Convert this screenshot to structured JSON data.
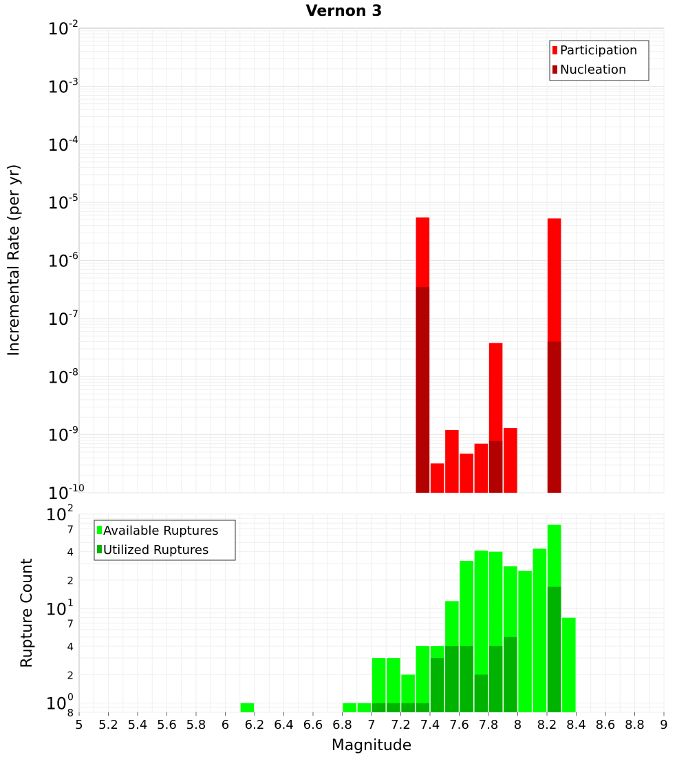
{
  "chart_data": [
    {
      "type": "bar",
      "title": "Vernon 3",
      "ylabel": "Incremental Rate (per yr)",
      "xlabel": "",
      "yscale": "log",
      "ylim": [
        1e-10,
        0.01
      ],
      "xlim": [
        5,
        9
      ],
      "grid": true,
      "legend_position": "top-right",
      "x_ticks": [],
      "y_ticks": [
        {
          "base": "10",
          "exp": "-10",
          "value": 1e-10
        },
        {
          "base": "10",
          "exp": "-9",
          "value": 1e-09
        },
        {
          "base": "10",
          "exp": "-8",
          "value": 1e-08
        },
        {
          "base": "10",
          "exp": "-7",
          "value": 1e-07
        },
        {
          "base": "10",
          "exp": "-6",
          "value": 1e-06
        },
        {
          "base": "10",
          "exp": "-5",
          "value": 1e-05
        },
        {
          "base": "10",
          "exp": "-4",
          "value": 0.0001
        },
        {
          "base": "10",
          "exp": "-3",
          "value": 0.001
        },
        {
          "base": "10",
          "exp": "-2",
          "value": 0.01
        }
      ],
      "series": [
        {
          "name": "Participation",
          "color": "#ff0000",
          "points": [
            {
              "x": 7.35,
              "y": 5.5e-06
            },
            {
              "x": 7.45,
              "y": 3.2e-10
            },
            {
              "x": 7.55,
              "y": 1.2e-09
            },
            {
              "x": 7.65,
              "y": 4.7e-10
            },
            {
              "x": 7.75,
              "y": 7e-10
            },
            {
              "x": 7.85,
              "y": 3.8e-08
            },
            {
              "x": 7.95,
              "y": 1.3e-09
            },
            {
              "x": 8.25,
              "y": 5.3e-06
            }
          ]
        },
        {
          "name": "Nucleation",
          "color": "#b30000",
          "points": [
            {
              "x": 7.35,
              "y": 3.5e-07
            },
            {
              "x": 7.85,
              "y": 7.8e-10
            },
            {
              "x": 8.25,
              "y": 4e-08
            }
          ]
        }
      ]
    },
    {
      "type": "bar",
      "title": "",
      "ylabel": "Rupture Count",
      "xlabel": "Magnitude",
      "yscale": "log",
      "ylim": [
        0.8,
        100
      ],
      "xlim": [
        5,
        9
      ],
      "grid": true,
      "legend_position": "top-left",
      "x_ticks": [
        "5",
        "5.2",
        "5.4",
        "5.6",
        "5.8",
        "6",
        "6.2",
        "6.4",
        "6.6",
        "6.8",
        "7",
        "7.2",
        "7.4",
        "7.6",
        "7.8",
        "8",
        "8.2",
        "8.4",
        "8.6",
        "8.8",
        "9"
      ],
      "y_ticks": [
        {
          "base": "10",
          "exp": "2",
          "value": 100
        },
        {
          "base": "10",
          "exp": "1",
          "value": 10
        },
        {
          "base": "10",
          "exp": "0",
          "value": 1
        }
      ],
      "y_minor_ticks": [
        {
          "label": "7",
          "value": 70
        },
        {
          "label": "4",
          "value": 40
        },
        {
          "label": "2",
          "value": 20
        },
        {
          "label": "7",
          "value": 7
        },
        {
          "label": "4",
          "value": 4
        },
        {
          "label": "2",
          "value": 2
        },
        {
          "label": "8",
          "value": 0.8
        }
      ],
      "series": [
        {
          "name": "Available Ruptures",
          "color": "#00ff00",
          "points": [
            {
              "x": 6.15,
              "y": 1
            },
            {
              "x": 6.85,
              "y": 1
            },
            {
              "x": 6.95,
              "y": 1
            },
            {
              "x": 7.05,
              "y": 3
            },
            {
              "x": 7.15,
              "y": 3
            },
            {
              "x": 7.25,
              "y": 2
            },
            {
              "x": 7.35,
              "y": 4
            },
            {
              "x": 7.45,
              "y": 4
            },
            {
              "x": 7.55,
              "y": 12
            },
            {
              "x": 7.65,
              "y": 32
            },
            {
              "x": 7.75,
              "y": 41
            },
            {
              "x": 7.85,
              "y": 40
            },
            {
              "x": 7.95,
              "y": 28
            },
            {
              "x": 8.05,
              "y": 25
            },
            {
              "x": 8.15,
              "y": 43
            },
            {
              "x": 8.25,
              "y": 77
            },
            {
              "x": 8.35,
              "y": 8
            }
          ]
        },
        {
          "name": "Utilized Ruptures",
          "color": "#00b300",
          "points": [
            {
              "x": 7.05,
              "y": 1
            },
            {
              "x": 7.15,
              "y": 1
            },
            {
              "x": 7.25,
              "y": 1
            },
            {
              "x": 7.35,
              "y": 1
            },
            {
              "x": 7.45,
              "y": 3
            },
            {
              "x": 7.55,
              "y": 4
            },
            {
              "x": 7.65,
              "y": 4
            },
            {
              "x": 7.75,
              "y": 2
            },
            {
              "x": 7.85,
              "y": 4
            },
            {
              "x": 7.95,
              "y": 5
            },
            {
              "x": 8.25,
              "y": 17
            }
          ]
        }
      ]
    }
  ]
}
